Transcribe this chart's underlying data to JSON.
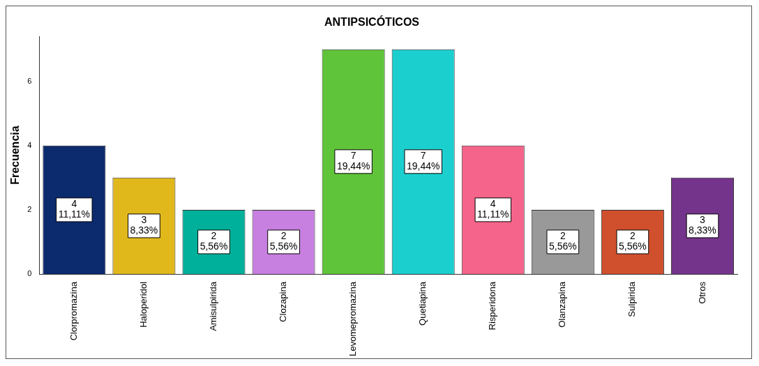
{
  "chart_data": {
    "type": "bar",
    "title": "ANTIPSICÓTICOS",
    "ylabel": "Frecuencia",
    "categories": [
      "Clorpromazina",
      "Haloperidol",
      "Amisulpirida",
      "Clozapina",
      "Levomepromazina",
      "Quetiapina",
      "Risperidona",
      "Olanzapina",
      "Sulpirida",
      "Otros"
    ],
    "values": [
      4,
      3,
      2,
      2,
      7,
      7,
      4,
      2,
      2,
      3
    ],
    "colors": [
      "#0c2a6e",
      "#e0b81c",
      "#00b09a",
      "#c77fe0",
      "#5fc43a",
      "#1ccfcf",
      "#f5648a",
      "#999999",
      "#d0502e",
      "#74348c"
    ],
    "value_labels": [
      "4\n11,11%",
      "3\n8,33%",
      "2\n5,56%",
      "2\n5,56%",
      "7\n19,44%",
      "7\n19,44%",
      "4\n11,11%",
      "2\n5,56%",
      "2\n5,56%",
      "3\n8,33%"
    ],
    "ylim": [
      0,
      7.4
    ],
    "yticks": [
      0,
      2,
      4,
      6
    ],
    "grid": false,
    "legend": false
  }
}
